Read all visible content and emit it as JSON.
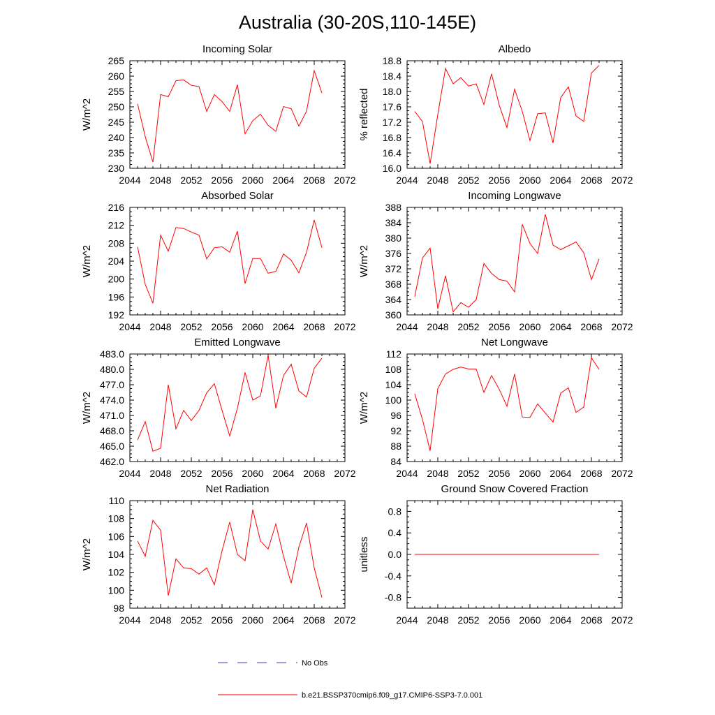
{
  "figure_title": "Australia (30-20S,110-145E)",
  "legend": {
    "entries": [
      {
        "label": "No Obs",
        "color": "#3b3bb3",
        "dash": true
      },
      {
        "label": "b.e21.BSSP370cmip6.f09_g17.CMIP6-SSP3-7.0.001",
        "color": "#ff0000",
        "dash": false
      }
    ]
  },
  "colors": {
    "model": "#ff0000",
    "obs": "#3b3bb3",
    "axis": "#000000"
  },
  "chart_data": [
    {
      "type": "line",
      "title": "Incoming Solar",
      "ylabel": "W/m^2",
      "xlim": [
        2044,
        2072
      ],
      "ylim": [
        230,
        265
      ],
      "xticks": [
        2044,
        2048,
        2052,
        2056,
        2060,
        2064,
        2068,
        2072
      ],
      "yticks": [
        230,
        235,
        240,
        245,
        250,
        255,
        260,
        265
      ],
      "ytick_labels": [
        "230",
        "235",
        "240",
        "245",
        "250",
        "255",
        "260",
        "265"
      ],
      "series": [
        {
          "name": "b.e21.BSSP370cmip6.f09_g17.CMIP6-SSP3-7.0.001",
          "x": [
            2045,
            2046,
            2047,
            2048,
            2049,
            2050,
            2051,
            2052,
            2053,
            2054,
            2055,
            2056,
            2057,
            2058,
            2059,
            2060,
            2061,
            2062,
            2063,
            2064,
            2065,
            2066,
            2067,
            2068,
            2069
          ],
          "values": [
            251,
            240.3,
            232,
            254,
            253.3,
            258.5,
            258.8,
            257,
            256.6,
            248.5,
            254,
            251.7,
            248.5,
            257.2,
            241.2,
            245.5,
            247.6,
            244,
            242,
            250.1,
            249.4,
            243.7,
            248.6,
            261.8,
            254.5
          ]
        }
      ]
    },
    {
      "type": "line",
      "title": "Albedo",
      "ylabel": "% reflected",
      "xlim": [
        2044,
        2072
      ],
      "ylim": [
        16.0,
        18.8
      ],
      "xticks": [
        2044,
        2048,
        2052,
        2056,
        2060,
        2064,
        2068,
        2072
      ],
      "yticks": [
        16.0,
        16.4,
        16.8,
        17.2,
        17.6,
        18.0,
        18.4,
        18.8
      ],
      "ytick_labels": [
        "16.0",
        "16.4",
        "16.8",
        "17.2",
        "17.6",
        "18.0",
        "18.4",
        "18.8"
      ],
      "series": [
        {
          "name": "b.e21.BSSP370cmip6.f09_g17.CMIP6-SSP3-7.0.001",
          "x": [
            2045,
            2046,
            2047,
            2048,
            2049,
            2050,
            2051,
            2052,
            2053,
            2054,
            2055,
            2056,
            2057,
            2058,
            2059,
            2060,
            2061,
            2062,
            2063,
            2064,
            2065,
            2066,
            2067,
            2068,
            2069
          ],
          "values": [
            17.48,
            17.22,
            16.12,
            17.4,
            18.6,
            18.2,
            18.36,
            18.14,
            18.2,
            17.66,
            18.46,
            17.64,
            17.06,
            18.06,
            17.48,
            16.72,
            17.42,
            17.44,
            16.66,
            17.84,
            18.12,
            17.36,
            17.22,
            18.48,
            18.68
          ]
        }
      ]
    },
    {
      "type": "line",
      "title": "Absorbed Solar",
      "ylabel": "W/m^2",
      "xlim": [
        2044,
        2072
      ],
      "ylim": [
        192,
        216
      ],
      "xticks": [
        2044,
        2048,
        2052,
        2056,
        2060,
        2064,
        2068,
        2072
      ],
      "yticks": [
        192,
        196,
        200,
        204,
        208,
        212,
        216
      ],
      "ytick_labels": [
        "192",
        "196",
        "200",
        "204",
        "208",
        "212",
        "216"
      ],
      "series": [
        {
          "name": "b.e21.BSSP370cmip6.f09_g17.CMIP6-SSP3-7.0.001",
          "x": [
            2045,
            2046,
            2047,
            2048,
            2049,
            2050,
            2051,
            2052,
            2053,
            2054,
            2055,
            2056,
            2057,
            2058,
            2059,
            2060,
            2061,
            2062,
            2063,
            2064,
            2065,
            2066,
            2067,
            2068,
            2069
          ],
          "values": [
            207.2,
            198.8,
            194.6,
            209.8,
            206.2,
            211.5,
            211.3,
            210.5,
            209.8,
            204.5,
            207,
            207.2,
            206,
            210.7,
            199,
            204.6,
            204.6,
            201.3,
            201.7,
            205.6,
            204.2,
            201.4,
            206,
            213.2,
            207
          ]
        }
      ]
    },
    {
      "type": "line",
      "title": "Incoming Longwave",
      "ylabel": "W/m^2",
      "xlim": [
        2044,
        2072
      ],
      "ylim": [
        360,
        388
      ],
      "xticks": [
        2044,
        2048,
        2052,
        2056,
        2060,
        2064,
        2068,
        2072
      ],
      "yticks": [
        360,
        364,
        368,
        372,
        376,
        380,
        384,
        388
      ],
      "ytick_labels": [
        "360",
        "364",
        "368",
        "372",
        "376",
        "380",
        "384",
        "388"
      ],
      "series": [
        {
          "name": "b.e21.BSSP370cmip6.f09_g17.CMIP6-SSP3-7.0.001",
          "x": [
            2045,
            2046,
            2047,
            2048,
            2049,
            2050,
            2051,
            2052,
            2053,
            2054,
            2055,
            2056,
            2057,
            2058,
            2059,
            2060,
            2061,
            2062,
            2063,
            2064,
            2065,
            2066,
            2067,
            2068,
            2069
          ],
          "values": [
            364.8,
            374.8,
            377.4,
            361.6,
            370.2,
            360.8,
            363.2,
            362,
            364,
            373.4,
            370.8,
            369.2,
            368.8,
            366,
            383.6,
            378.6,
            376,
            386.2,
            378.2,
            377,
            378,
            379,
            376.2,
            369.2,
            374.6
          ]
        }
      ]
    },
    {
      "type": "line",
      "title": "Emitted Longwave",
      "ylabel": "W/m^2",
      "xlim": [
        2044,
        2072
      ],
      "ylim": [
        462.0,
        483.0
      ],
      "xticks": [
        2044,
        2048,
        2052,
        2056,
        2060,
        2064,
        2068,
        2072
      ],
      "yticks": [
        462,
        465,
        468,
        471,
        474,
        477,
        480,
        483
      ],
      "ytick_labels": [
        "462.0",
        "465.0",
        "468.0",
        "471.0",
        "474.0",
        "477.0",
        "480.0",
        "483.0"
      ],
      "series": [
        {
          "name": "b.e21.BSSP370cmip6.f09_g17.CMIP6-SSP3-7.0.001",
          "x": [
            2045,
            2046,
            2047,
            2048,
            2049,
            2050,
            2051,
            2052,
            2053,
            2054,
            2055,
            2056,
            2057,
            2058,
            2059,
            2060,
            2061,
            2062,
            2063,
            2064,
            2065,
            2066,
            2067,
            2068,
            2069
          ],
          "values": [
            466.2,
            469.8,
            464,
            464.6,
            477,
            468.4,
            472,
            470,
            472,
            475.4,
            477.2,
            472,
            467,
            472.4,
            479.4,
            474,
            474.8,
            482.8,
            472.4,
            478.8,
            481,
            475.8,
            474.6,
            480.2,
            482.2
          ]
        }
      ]
    },
    {
      "type": "line",
      "title": "Net Longwave",
      "ylabel": "W/m^2",
      "xlim": [
        2044,
        2072
      ],
      "ylim": [
        84,
        112
      ],
      "xticks": [
        2044,
        2048,
        2052,
        2056,
        2060,
        2064,
        2068,
        2072
      ],
      "yticks": [
        84,
        88,
        92,
        96,
        100,
        104,
        108,
        112
      ],
      "ytick_labels": [
        "84",
        "88",
        "92",
        "96",
        "100",
        "104",
        "108",
        "112"
      ],
      "series": [
        {
          "name": "b.e21.BSSP370cmip6.f09_g17.CMIP6-SSP3-7.0.001",
          "x": [
            2045,
            2046,
            2047,
            2048,
            2049,
            2050,
            2051,
            2052,
            2053,
            2054,
            2055,
            2056,
            2057,
            2058,
            2059,
            2060,
            2061,
            2062,
            2063,
            2064,
            2065,
            2066,
            2067,
            2068,
            2069
          ],
          "values": [
            101.6,
            95,
            86.8,
            103,
            106.8,
            108,
            108.6,
            108.1,
            108.1,
            102,
            106.4,
            102.8,
            98.4,
            106.8,
            95.6,
            95.5,
            99,
            96.6,
            94.3,
            101.8,
            103.2,
            96.8,
            98.2,
            111,
            108
          ]
        }
      ]
    },
    {
      "type": "line",
      "title": "Net Radiation",
      "ylabel": "W/m^2",
      "xlim": [
        2044,
        2072
      ],
      "ylim": [
        98,
        110
      ],
      "xticks": [
        2044,
        2048,
        2052,
        2056,
        2060,
        2064,
        2068,
        2072
      ],
      "yticks": [
        98,
        100,
        102,
        104,
        106,
        108,
        110
      ],
      "ytick_labels": [
        "98",
        "100",
        "102",
        "104",
        "106",
        "108",
        "110"
      ],
      "series": [
        {
          "name": "b.e21.BSSP370cmip6.f09_g17.CMIP6-SSP3-7.0.001",
          "x": [
            2045,
            2046,
            2047,
            2048,
            2049,
            2050,
            2051,
            2052,
            2053,
            2054,
            2055,
            2056,
            2057,
            2058,
            2059,
            2060,
            2061,
            2062,
            2063,
            2064,
            2065,
            2066,
            2067,
            2068,
            2069
          ],
          "values": [
            105.5,
            103.8,
            107.8,
            106.7,
            99.4,
            103.5,
            102.5,
            102.4,
            101.8,
            102.5,
            100.6,
            104.4,
            107.6,
            104,
            103.3,
            109,
            105.5,
            104.6,
            107.4,
            103.8,
            100.8,
            104.8,
            107.5,
            102.5,
            99.2
          ]
        }
      ]
    },
    {
      "type": "line",
      "title": "Ground Snow Covered Fraction",
      "ylabel": "unitless",
      "xlim": [
        2044,
        2072
      ],
      "ylim": [
        -1.0,
        1.0
      ],
      "xticks": [
        2044,
        2048,
        2052,
        2056,
        2060,
        2064,
        2068,
        2072
      ],
      "yticks": [
        -0.8,
        -0.4,
        0.0,
        0.4,
        0.8
      ],
      "ytick_labels": [
        "-0.8",
        "-0.4",
        "0.0",
        "0.4",
        "0.8"
      ],
      "series": [
        {
          "name": "b.e21.BSSP370cmip6.f09_g17.CMIP6-SSP3-7.0.001",
          "x": [
            2045,
            2046,
            2047,
            2048,
            2049,
            2050,
            2051,
            2052,
            2053,
            2054,
            2055,
            2056,
            2057,
            2058,
            2059,
            2060,
            2061,
            2062,
            2063,
            2064,
            2065,
            2066,
            2067,
            2068,
            2069
          ],
          "values": [
            0,
            0,
            0,
            0,
            0,
            0,
            0,
            0,
            0,
            0,
            0,
            0,
            0,
            0,
            0,
            0,
            0,
            0,
            0,
            0,
            0,
            0,
            0,
            0,
            0
          ]
        }
      ]
    }
  ]
}
